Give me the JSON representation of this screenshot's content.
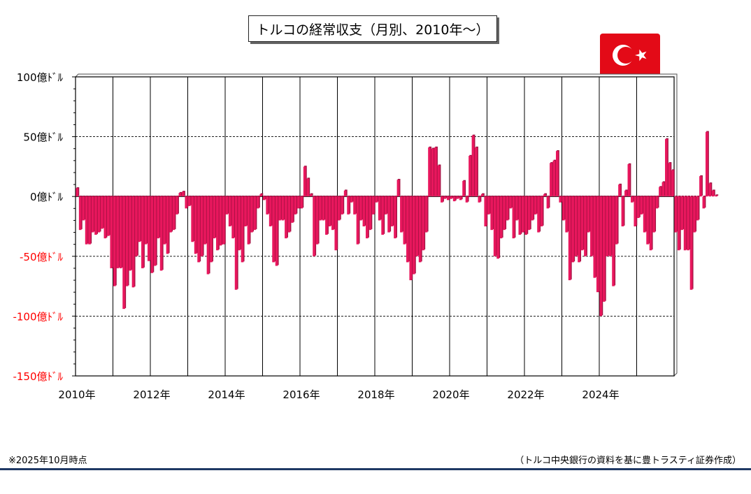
{
  "title": "トルコの経常収支（月別、2010年～）",
  "footnote": "※2025年10月時点",
  "source": "（トルコ中央銀行の資料を基に豊トラスティ証券作成）",
  "flag_icon": "turkey-flag-icon",
  "colors": {
    "bar": "#e8175d",
    "bar_edge": "#9e0f3f",
    "negative_label": "#ff0000",
    "rule": "#1f3864"
  },
  "chart_data": {
    "type": "bar",
    "title": "トルコの経常収支（月別、2010年～）",
    "xlabel": "",
    "ylabel": "",
    "unit": "億ドル",
    "ylim": [
      -150,
      100
    ],
    "yticks": [
      {
        "value": 100,
        "label": "100億ﾄﾞﾙ"
      },
      {
        "value": 50,
        "label": "50億ﾄﾞﾙ"
      },
      {
        "value": 0,
        "label": "0億ﾄﾞﾙ"
      },
      {
        "value": -50,
        "label": "-50億ﾄﾞﾙ"
      },
      {
        "value": -100,
        "label": "-100億ﾄﾞﾙ"
      },
      {
        "value": -150,
        "label": "-150億ﾄﾞﾙ"
      }
    ],
    "xticks": [
      "2010年",
      "2012年",
      "2014年",
      "2016年",
      "2018年",
      "2020年",
      "2022年",
      "2024年"
    ],
    "grid": "horizontal dashed at ±50, -100; vertical solid at each year",
    "start": "2010-01",
    "values": [
      7,
      -28,
      -20,
      -40,
      -40,
      -30,
      -32,
      -30,
      -27,
      -35,
      -33,
      -60,
      -75,
      -60,
      -60,
      -94,
      -75,
      -62,
      -76,
      -50,
      -38,
      -60,
      -40,
      -54,
      -64,
      -58,
      -35,
      -62,
      -40,
      -48,
      -30,
      -28,
      -15,
      3,
      4,
      -10,
      -8,
      -38,
      -48,
      -55,
      -50,
      -40,
      -65,
      -55,
      -35,
      -45,
      -41,
      -40,
      -15,
      -25,
      -35,
      -78,
      -45,
      -55,
      -25,
      -40,
      -30,
      -28,
      -10,
      2,
      -3,
      -15,
      -25,
      -55,
      -58,
      -20,
      -20,
      -35,
      -30,
      -22,
      -15,
      -10,
      -10,
      25,
      15,
      2,
      -50,
      -40,
      -20,
      -20,
      -32,
      -25,
      -28,
      -45,
      -20,
      -15,
      5,
      -15,
      -5,
      -15,
      -40,
      -20,
      -25,
      -35,
      -28,
      -15,
      -5,
      -20,
      -32,
      -15,
      -30,
      -25,
      -35,
      14,
      -30,
      -40,
      -55,
      -70,
      -65,
      -50,
      -55,
      -45,
      -30,
      41,
      40,
      41,
      26,
      -5,
      -2,
      -3,
      -2,
      -4,
      -2,
      -3,
      13,
      -5,
      34,
      51,
      41,
      -5,
      2,
      -25,
      -15,
      -28,
      -50,
      -52,
      -35,
      -28,
      -20,
      -10,
      -35,
      -20,
      -32,
      -30,
      -32,
      -28,
      -20,
      -15,
      -30,
      -25,
      2,
      -10,
      28,
      30,
      38,
      -5,
      -20,
      -30,
      -70,
      -55,
      -50,
      -55,
      -45,
      -50,
      -30,
      -50,
      -68,
      -80,
      -100,
      -88,
      -50,
      -50,
      -75,
      -40,
      10,
      -25,
      5,
      27,
      -5,
      -25,
      -18,
      -15,
      -30,
      -40,
      -45,
      -30,
      -10,
      8,
      12,
      48,
      28,
      22,
      -30,
      -45,
      -28,
      -45,
      -45,
      -78,
      -30,
      -20,
      17,
      -10,
      54,
      11,
      5,
      1
    ]
  }
}
